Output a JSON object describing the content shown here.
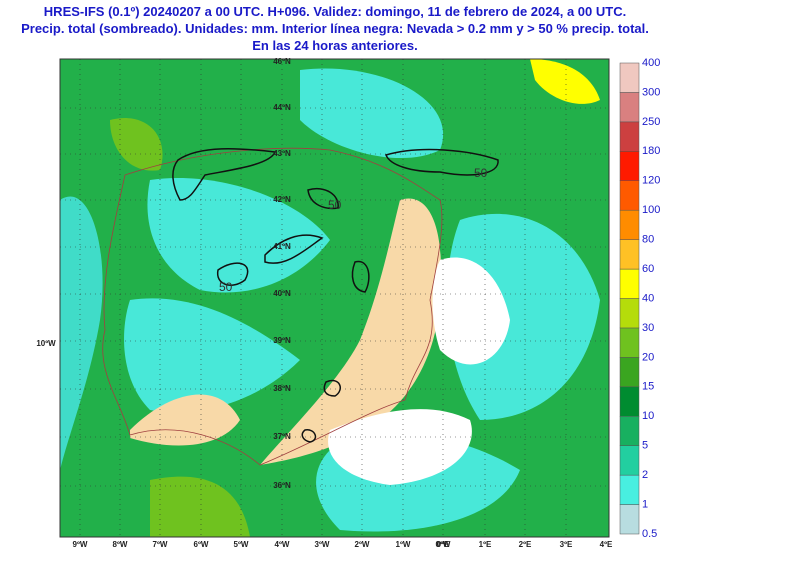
{
  "header": {
    "title_lines": [
      "HRES-IFS (0.1º) 20240207 a 00 UTC. H+096. Validez: domingo, 11 de febrero de 2024, a 00 UTC.",
      "Precip. total (sombreado). Unidades: mm. Interior línea negra: Nevada > 0.2 mm y > 50 % precip. total.",
      "En las 24 horas anteriores."
    ]
  },
  "map": {
    "lat_labels": [
      "46ºN",
      "44ºN",
      "43ºN",
      "42ºN",
      "41ºN",
      "40ºN",
      "39ºN",
      "38ºN",
      "37ºN",
      "36ºN"
    ],
    "lon_labels": [
      "9ºW",
      "8ºW",
      "7ºW",
      "6ºW",
      "5ºW",
      "4ºW",
      "3ºW",
      "2ºW",
      "1ºW",
      "0ºW",
      "0ºE",
      "1ºE",
      "2ºE",
      "3ºE",
      "4ºE"
    ],
    "west_label": "10ºW",
    "contour_labels": [
      "50",
      "50",
      "50"
    ]
  },
  "colorbar": {
    "labels": [
      0.5,
      1,
      2,
      5,
      10,
      15,
      20,
      30,
      40,
      60,
      80,
      100,
      120,
      180,
      250,
      300,
      400
    ],
    "colors": [
      "#b8dde0",
      "#48efe0",
      "#22cfa0",
      "#18b060",
      "#008c30",
      "#3aa520",
      "#6fc21f",
      "#b5dc0b",
      "#ffff00",
      "#ffc125",
      "#ff8c00",
      "#ff5a00",
      "#ff1a00",
      "#cc4040",
      "#d98080",
      "#f0c8c0"
    ]
  }
}
